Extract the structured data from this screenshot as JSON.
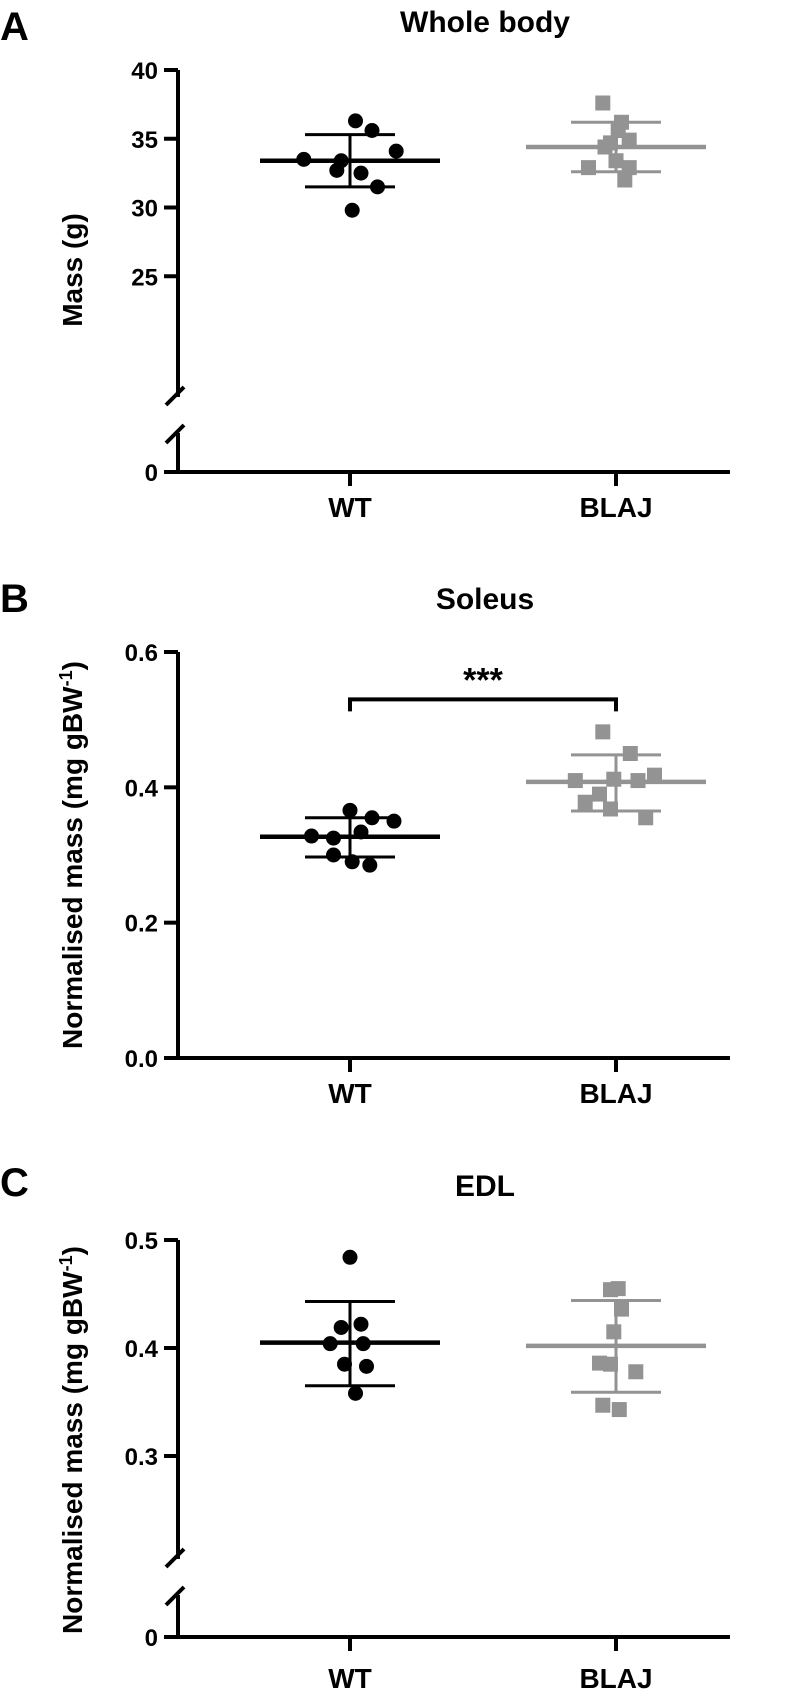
{
  "chart_data": [
    {
      "type": "scatter",
      "panel": "A",
      "title": "Whole body",
      "ylabel": "Mass (g)",
      "categories": [
        "WT",
        "BLAJ"
      ],
      "yticks": [
        0,
        25,
        30,
        35,
        40
      ],
      "ytick_labels": [
        "0",
        "25",
        "30",
        "35",
        "40"
      ],
      "ylim": [
        20,
        40
      ],
      "y_axis_break": true,
      "series": [
        {
          "category": "WT",
          "color": "#000000",
          "marker": "circle",
          "points": [
            {
              "dx": 0.05,
              "y": 36.3
            },
            {
              "dx": 0.2,
              "y": 35.6
            },
            {
              "dx": 0.42,
              "y": 34.1
            },
            {
              "dx": -0.42,
              "y": 33.5
            },
            {
              "dx": -0.08,
              "y": 33.4
            },
            {
              "dx": -0.12,
              "y": 32.7
            },
            {
              "dx": 0.1,
              "y": 32.5
            },
            {
              "dx": 0.25,
              "y": 31.5
            },
            {
              "dx": 0.02,
              "y": 29.8
            }
          ],
          "mean": 33.4,
          "sd_upper": 35.3,
          "sd_lower": 31.5
        },
        {
          "category": "BLAJ",
          "color": "#939393",
          "marker": "square",
          "points": [
            {
              "dx": -0.12,
              "y": 37.6
            },
            {
              "dx": 0.05,
              "y": 36.2
            },
            {
              "dx": 0.02,
              "y": 35.6
            },
            {
              "dx": -0.05,
              "y": 34.7
            },
            {
              "dx": 0.12,
              "y": 34.9
            },
            {
              "dx": -0.1,
              "y": 34.4
            },
            {
              "dx": 0.0,
              "y": 33.4
            },
            {
              "dx": -0.25,
              "y": 32.9
            },
            {
              "dx": 0.12,
              "y": 32.9
            },
            {
              "dx": 0.08,
              "y": 32.0
            }
          ],
          "mean": 34.4,
          "sd_upper": 36.2,
          "sd_lower": 32.6
        }
      ]
    },
    {
      "type": "scatter",
      "panel": "B",
      "title": "Soleus",
      "ylabel": "Normalised mass (mg gBW",
      "ylabel_sup": "-1",
      "ylabel_tail": ")",
      "categories": [
        "WT",
        "BLAJ"
      ],
      "yticks": [
        0.0,
        0.2,
        0.4,
        0.6
      ],
      "ytick_labels": [
        "0.0",
        "0.2",
        "0.4",
        "0.6"
      ],
      "ylim": [
        0,
        0.6
      ],
      "y_axis_break": false,
      "significance": {
        "label": "***",
        "y": 0.53,
        "from": "WT",
        "to": "BLAJ"
      },
      "series": [
        {
          "category": "WT",
          "color": "#000000",
          "marker": "circle",
          "points": [
            {
              "dx": 0.0,
              "y": 0.366
            },
            {
              "dx": 0.2,
              "y": 0.355
            },
            {
              "dx": 0.4,
              "y": 0.35
            },
            {
              "dx": -0.35,
              "y": 0.328
            },
            {
              "dx": -0.15,
              "y": 0.325
            },
            {
              "dx": 0.1,
              "y": 0.334
            },
            {
              "dx": -0.15,
              "y": 0.3
            },
            {
              "dx": 0.02,
              "y": 0.29
            },
            {
              "dx": 0.18,
              "y": 0.285
            }
          ],
          "mean": 0.327,
          "sd_upper": 0.355,
          "sd_lower": 0.297
        },
        {
          "category": "BLAJ",
          "color": "#939393",
          "marker": "square",
          "points": [
            {
              "dx": -0.12,
              "y": 0.482
            },
            {
              "dx": 0.13,
              "y": 0.45
            },
            {
              "dx": -0.37,
              "y": 0.41
            },
            {
              "dx": -0.02,
              "y": 0.412
            },
            {
              "dx": 0.2,
              "y": 0.41
            },
            {
              "dx": 0.35,
              "y": 0.418
            },
            {
              "dx": -0.15,
              "y": 0.39
            },
            {
              "dx": -0.28,
              "y": 0.378
            },
            {
              "dx": -0.05,
              "y": 0.368
            },
            {
              "dx": 0.27,
              "y": 0.355
            }
          ],
          "mean": 0.408,
          "sd_upper": 0.448,
          "sd_lower": 0.365
        }
      ]
    },
    {
      "type": "scatter",
      "panel": "C",
      "title": "EDL",
      "ylabel": "Normalised mass (mg gBW",
      "ylabel_sup": "-1",
      "ylabel_tail": ")",
      "categories": [
        "WT",
        "BLAJ"
      ],
      "yticks": [
        0,
        0.3,
        0.4,
        0.5
      ],
      "ytick_labels": [
        "0",
        "0.3",
        "0.4",
        "0.5"
      ],
      "ylim": [
        0.25,
        0.5
      ],
      "y_axis_break": true,
      "series": [
        {
          "category": "WT",
          "color": "#000000",
          "marker": "circle",
          "points": [
            {
              "dx": 0.0,
              "y": 0.484
            },
            {
              "dx": 0.1,
              "y": 0.422
            },
            {
              "dx": -0.08,
              "y": 0.419
            },
            {
              "dx": -0.18,
              "y": 0.404
            },
            {
              "dx": 0.12,
              "y": 0.404
            },
            {
              "dx": -0.05,
              "y": 0.385
            },
            {
              "dx": 0.15,
              "y": 0.383
            },
            {
              "dx": 0.05,
              "y": 0.358
            }
          ],
          "mean": 0.405,
          "sd_upper": 0.443,
          "sd_lower": 0.365
        },
        {
          "category": "BLAJ",
          "color": "#939393",
          "marker": "square",
          "points": [
            {
              "dx": -0.05,
              "y": 0.454
            },
            {
              "dx": 0.02,
              "y": 0.455
            },
            {
              "dx": 0.05,
              "y": 0.436
            },
            {
              "dx": -0.02,
              "y": 0.415
            },
            {
              "dx": -0.15,
              "y": 0.386
            },
            {
              "dx": 0.18,
              "y": 0.378
            },
            {
              "dx": -0.05,
              "y": 0.385
            },
            {
              "dx": -0.12,
              "y": 0.347
            },
            {
              "dx": 0.03,
              "y": 0.343
            }
          ],
          "mean": 0.402,
          "sd_upper": 0.444,
          "sd_lower": 0.359
        }
      ]
    }
  ]
}
